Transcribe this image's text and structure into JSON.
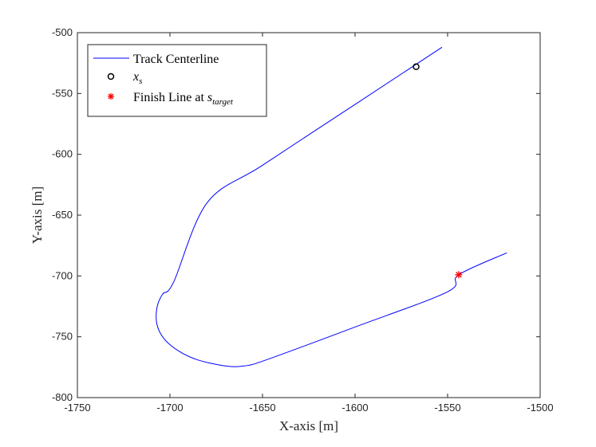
{
  "chart_data": {
    "type": "line",
    "xlabel": "X-axis [m]",
    "ylabel": "Y-axis [m]",
    "xlim": [
      -1750,
      -1500
    ],
    "ylim": [
      -800,
      -500
    ],
    "x_ticks": [
      "-1750",
      "-1700",
      "-1650",
      "-1600",
      "-1550",
      "-1500"
    ],
    "y_ticks": [
      "-500",
      "-550",
      "-600",
      "-650",
      "-700",
      "-750",
      "-800"
    ],
    "grid": false,
    "legend_position": "top-left",
    "series": [
      {
        "name": "Track Centerline",
        "color": "#0000ff",
        "marker": "none",
        "points": [
          [
            -1553,
            -512
          ],
          [
            -1568,
            -527
          ],
          [
            -1600,
            -559
          ],
          [
            -1650,
            -609
          ],
          [
            -1680,
            -640
          ],
          [
            -1698,
            -705
          ],
          [
            -1704,
            -715
          ],
          [
            -1707,
            -726
          ],
          [
            -1707,
            -740
          ],
          [
            -1703,
            -752
          ],
          [
            -1695,
            -762
          ],
          [
            -1685,
            -769
          ],
          [
            -1670,
            -774
          ],
          [
            -1660,
            -774
          ],
          [
            -1648,
            -769
          ],
          [
            -1600,
            -742
          ],
          [
            -1550,
            -713
          ],
          [
            -1544,
            -699
          ],
          [
            -1518,
            -681
          ]
        ]
      },
      {
        "name": "x_s",
        "legend_base": "x",
        "legend_sub": "s",
        "color": "#000000",
        "marker": "circle",
        "points": [
          [
            -1567,
            -528
          ]
        ]
      },
      {
        "name": "Finish Line at s_target",
        "legend_base": "Finish Line at ",
        "legend_math": "s",
        "legend_sub": "target",
        "color": "#ff0000",
        "marker": "asterisk",
        "points": [
          [
            -1544,
            -699
          ]
        ]
      }
    ]
  }
}
